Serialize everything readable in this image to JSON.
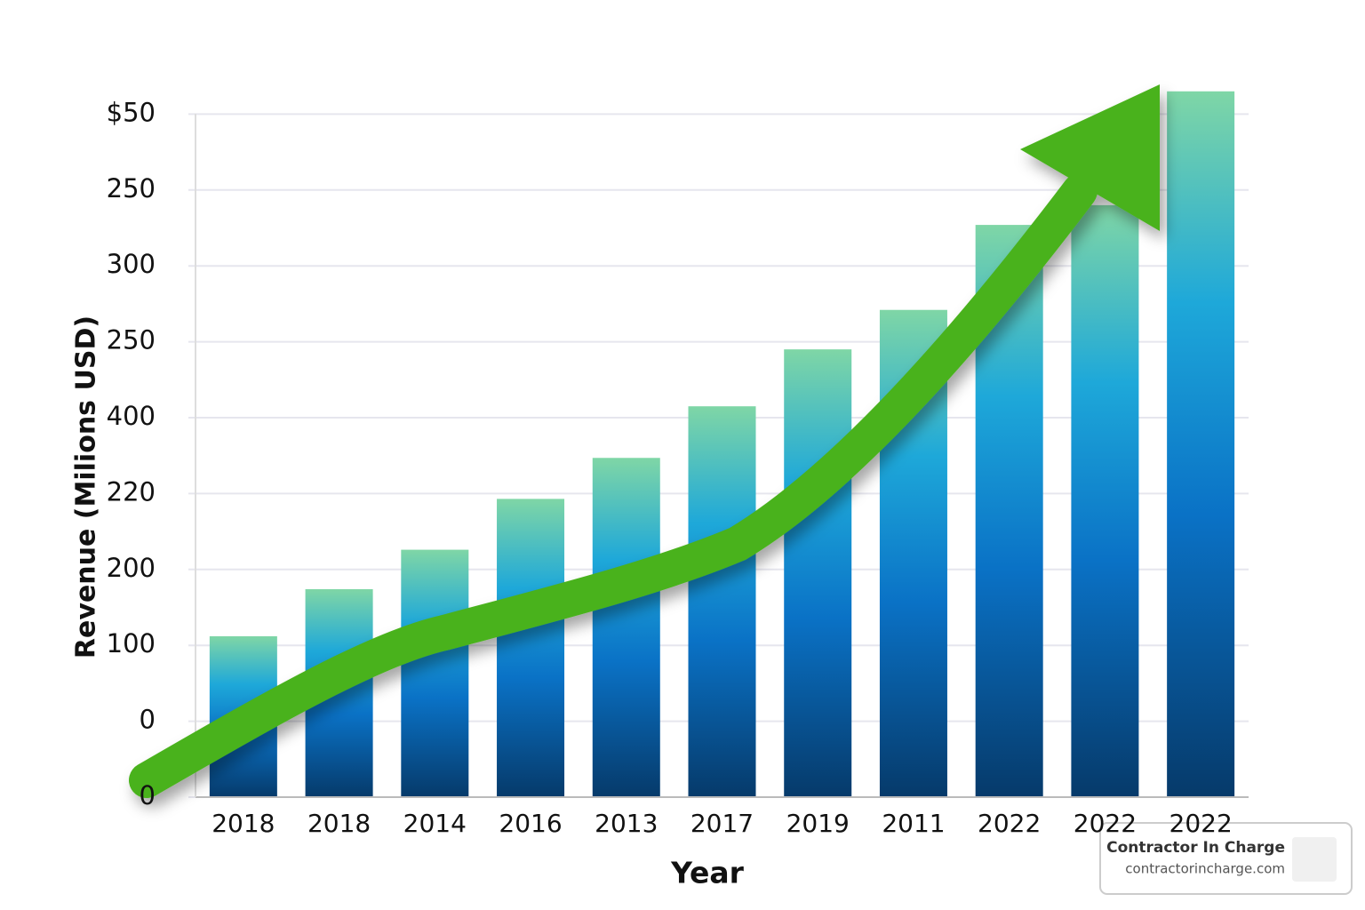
{
  "chart_data": {
    "type": "bar",
    "x_label": "Year",
    "y_label": "Revenue (Milions USD)",
    "categories": [
      "2018",
      "2018",
      "2014",
      "2016",
      "2013",
      "2017",
      "2019",
      "2011",
      "2022",
      "2022",
      "2022"
    ],
    "values": [
      2.12,
      2.74,
      3.26,
      3.93,
      4.47,
      5.15,
      5.9,
      6.42,
      7.54,
      7.8,
      9.3
    ],
    "ylim": [
      0,
      9.4
    ],
    "yticks": [
      {
        "value": 0,
        "label": "0"
      },
      {
        "value": 1,
        "label": "0"
      },
      {
        "value": 2,
        "label": "100"
      },
      {
        "value": 3,
        "label": "200"
      },
      {
        "value": 4,
        "label": "220"
      },
      {
        "value": 5,
        "label": "400"
      },
      {
        "value": 6,
        "label": "250"
      },
      {
        "value": 7,
        "label": "300"
      },
      {
        "value": 8,
        "label": "250"
      },
      {
        "value": 9,
        "label": "$50"
      }
    ],
    "grid": true,
    "colors": [
      "#7fd6a6",
      "#1ea8d9",
      "#0a72c6",
      "#063a6a"
    ]
  },
  "watermark": {
    "title": "Contractor In Charge",
    "url": "contractorincharge.com"
  }
}
